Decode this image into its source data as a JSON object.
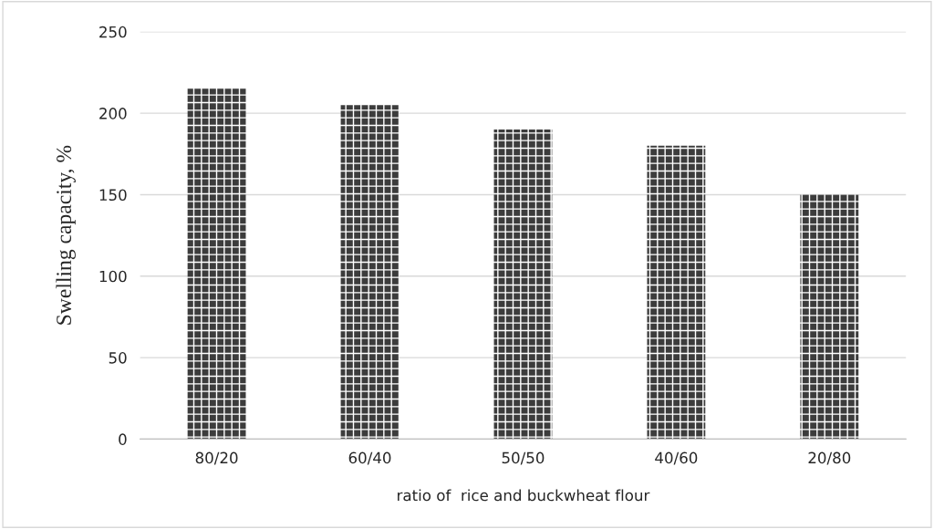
{
  "chart_data": {
    "type": "bar",
    "ylabel": "Swelling capacity, %",
    "xlabel": "ratio of  rice and buckwheat flour",
    "categories": [
      "80/20",
      "60/40",
      "50/50",
      "40/60",
      "20/80"
    ],
    "values": [
      215,
      205,
      190,
      180,
      150
    ],
    "color": "#3c3c3c",
    "ylim": [
      0,
      250
    ],
    "yticks": [
      0,
      50,
      100,
      150,
      200,
      250
    ],
    "grid": "y",
    "legend": false
  }
}
